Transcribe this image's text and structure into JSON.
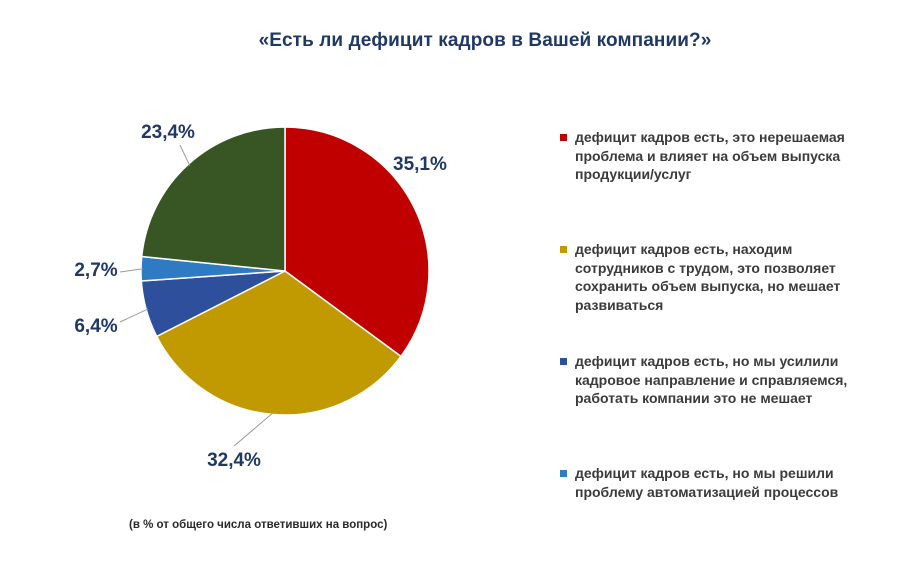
{
  "title": "«Есть ли дефицит кадров в Вашей компании?»",
  "footnote": "(в % от  общего числа ответивших на вопрос)",
  "chart_data": {
    "type": "pie",
    "title": "«Есть ли дефицит кадров в Вашей компании?»",
    "start_angle_deg": 0,
    "direction": "clockwise",
    "slices": [
      {
        "key": "unsolvable",
        "value": 35.1,
        "label": "35,1%",
        "color": "#c00000",
        "legend": "дефицит кадров есть, это нерешаемая проблема и влияет на объем выпуска продукции/услуг"
      },
      {
        "key": "hard-hiring",
        "value": 32.4,
        "label": "32,4%",
        "color": "#c09a00",
        "legend": "дефицит кадров есть, находим сотрудников с трудом, это позволяет сохранить объем выпуска, но мешает развиваться"
      },
      {
        "key": "hr-strengthened",
        "value": 6.4,
        "label": "6,4%",
        "color": "#2e4f9b",
        "legend": "дефицит кадров есть, но мы усилили кадровое направление и справляемся, работать компании это не мешает"
      },
      {
        "key": "automation",
        "value": 2.7,
        "label": "2,7%",
        "color": "#2e7bc4",
        "legend": "дефицит кадров есть, но мы решили проблему автоматизацией процессов"
      },
      {
        "key": "other",
        "value": 23.4,
        "label": "23,4%",
        "color": "#375623",
        "legend": null
      }
    ]
  }
}
